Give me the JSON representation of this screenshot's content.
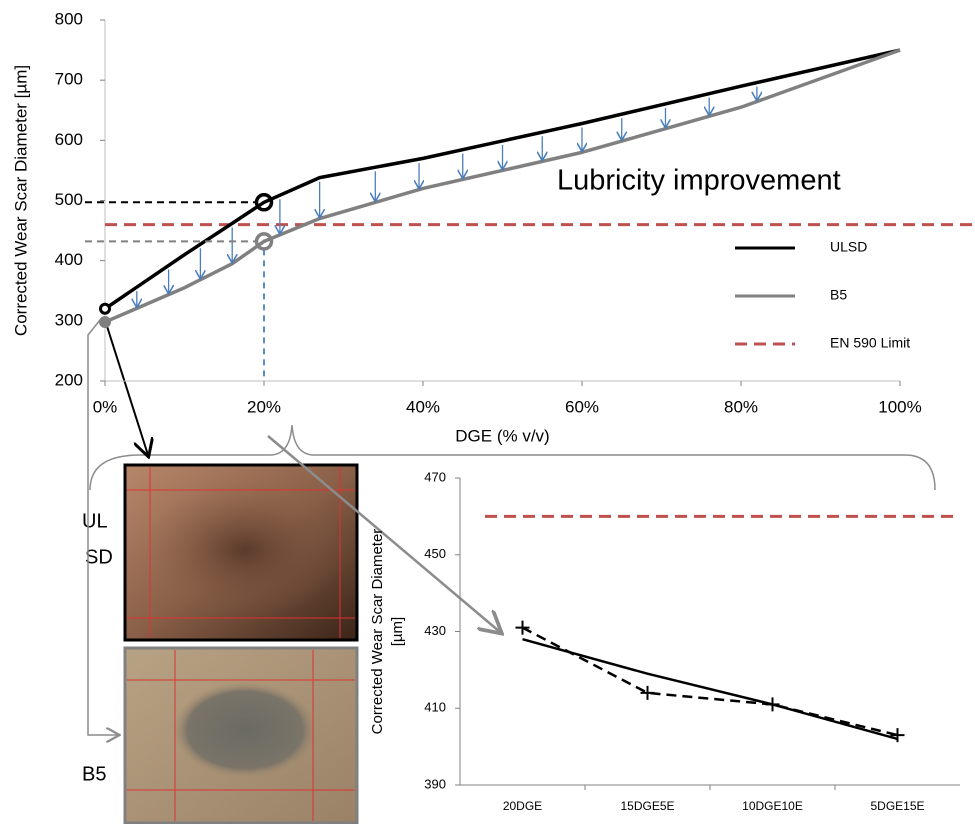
{
  "chart_data": [
    {
      "type": "line",
      "x_label": "DGE (% v/v)",
      "y_label": "Corrected Wear Scar Diameter [µm]",
      "annotation": "Lubricity improvement",
      "x": [
        0,
        10,
        16,
        20,
        27,
        40,
        60,
        80,
        100
      ],
      "series": [
        {
          "name": "ULSD",
          "color": "#000000",
          "values": [
            320,
            410,
            462,
            497,
            538,
            570,
            628,
            690,
            750
          ]
        },
        {
          "name": "B5",
          "color": "#808080",
          "values": [
            298,
            355,
            395,
            432,
            470,
            520,
            580,
            655,
            750
          ]
        }
      ],
      "limit": {
        "name": "EN 590 Limit",
        "value": 460,
        "color": "#c0504d"
      },
      "xlim": [
        0,
        100
      ],
      "xticks": [
        {
          "value": 0,
          "label": "0%"
        },
        {
          "value": 20,
          "label": "20%"
        },
        {
          "value": 40,
          "label": "40%"
        },
        {
          "value": 60,
          "label": "60%"
        },
        {
          "value": 80,
          "label": "80%"
        },
        {
          "value": 100,
          "label": "100%"
        }
      ],
      "ylim": [
        200,
        800
      ],
      "yticks": [
        200,
        300,
        400,
        500,
        600,
        700,
        800
      ],
      "highlight_index": 3
    },
    {
      "type": "line",
      "y_label_lines": [
        "Corrected Wear Scar Diameter",
        "[µm]"
      ],
      "categories": [
        "20DGE",
        "15DGE5E",
        "10DGE10E",
        "5DGE15E"
      ],
      "series": [
        {
          "color": "#000000",
          "values": [
            431,
            414,
            411,
            403
          ],
          "dashed": true,
          "marker": "plus"
        },
        {
          "color": "#000000",
          "values": [
            428,
            419,
            411,
            402
          ],
          "dashed": false,
          "marker": "none"
        }
      ],
      "limit": {
        "value": 460,
        "color": "#c0504d"
      },
      "ylim": [
        390,
        470
      ],
      "yticks": [
        390,
        410,
        430,
        450,
        470
      ]
    }
  ],
  "photo_labels": {
    "top": [
      "UL",
      "SD"
    ],
    "bottom": "B5"
  }
}
